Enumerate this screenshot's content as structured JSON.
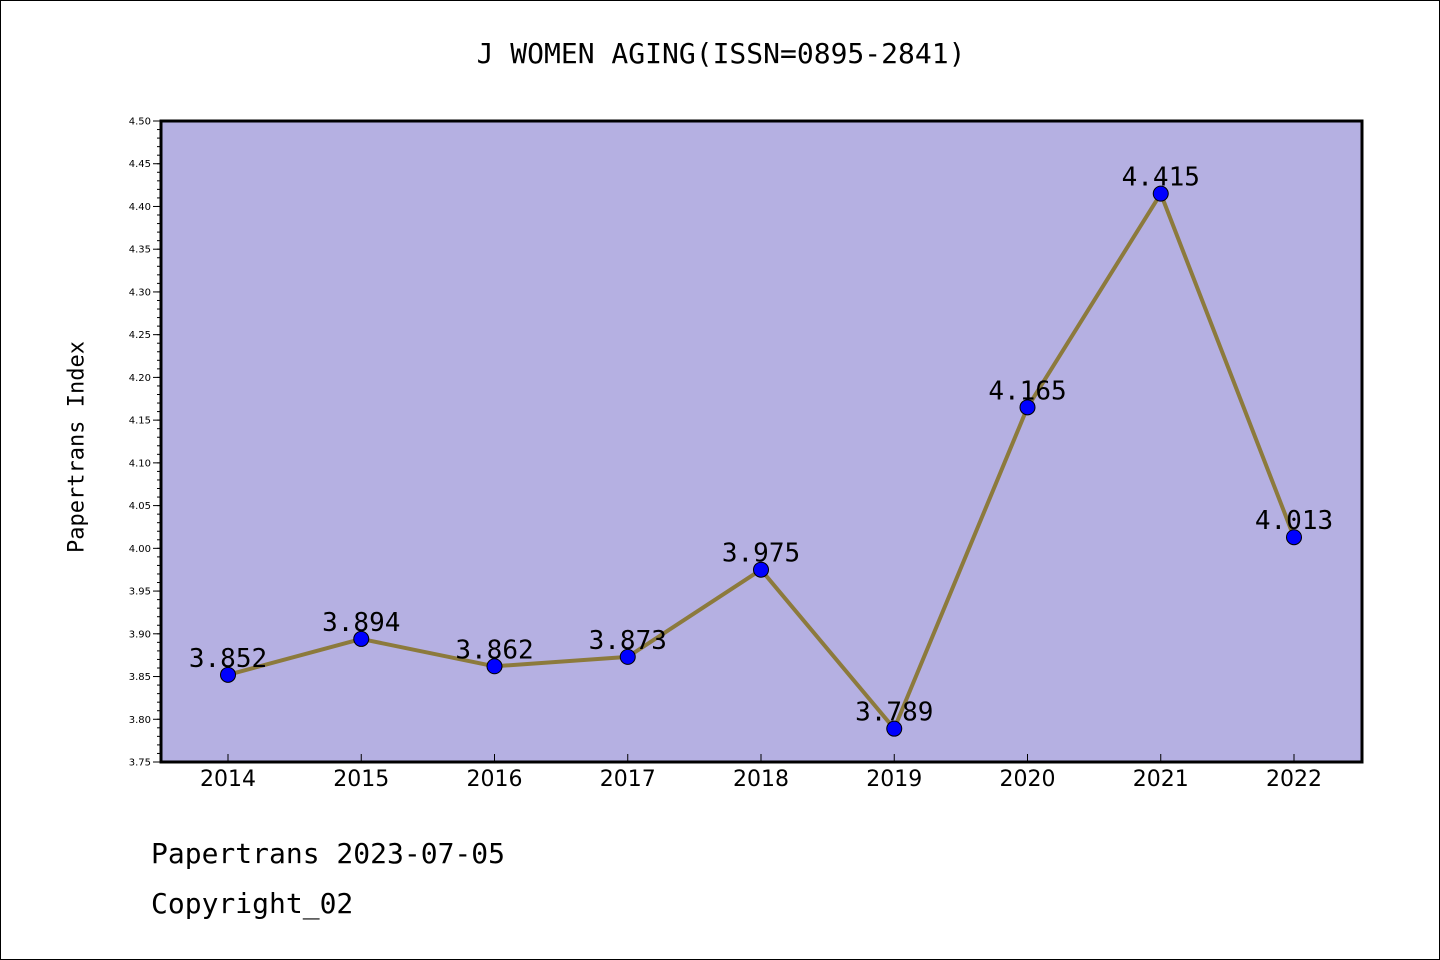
{
  "title": "J WOMEN AGING(ISSN=0895-2841)",
  "footer": {
    "line1": "Papertrans 2023-07-05",
    "line2": "Copyright_02"
  },
  "colors": {
    "plot_background": "#b5b0e2",
    "line": "#8c7a3c",
    "marker": "#0000ff"
  },
  "chart_data": {
    "type": "line",
    "title": "J WOMEN AGING(ISSN=0895-2841)",
    "xlabel": "",
    "ylabel": "Papertrans Index",
    "categories": [
      "2014",
      "2015",
      "2016",
      "2017",
      "2018",
      "2019",
      "2020",
      "2021",
      "2022"
    ],
    "series": [
      {
        "values": [
          3.852,
          3.894,
          3.862,
          3.873,
          3.975,
          3.789,
          4.165,
          4.415,
          4.013
        ],
        "labels": [
          "3.852",
          "3.894",
          "3.862",
          "3.873",
          "3.975",
          "3.789",
          "4.165",
          "4.415",
          "4.013"
        ]
      }
    ],
    "ylim": [
      3.75,
      4.5
    ],
    "yticks": [
      "3.75",
      "3.80",
      "3.85",
      "3.90",
      "3.95",
      "4.00",
      "4.05",
      "4.10",
      "4.15",
      "4.20",
      "4.25",
      "4.30",
      "4.35",
      "4.40",
      "4.45",
      "4.50"
    ],
    "grid": false,
    "legend": "none"
  }
}
